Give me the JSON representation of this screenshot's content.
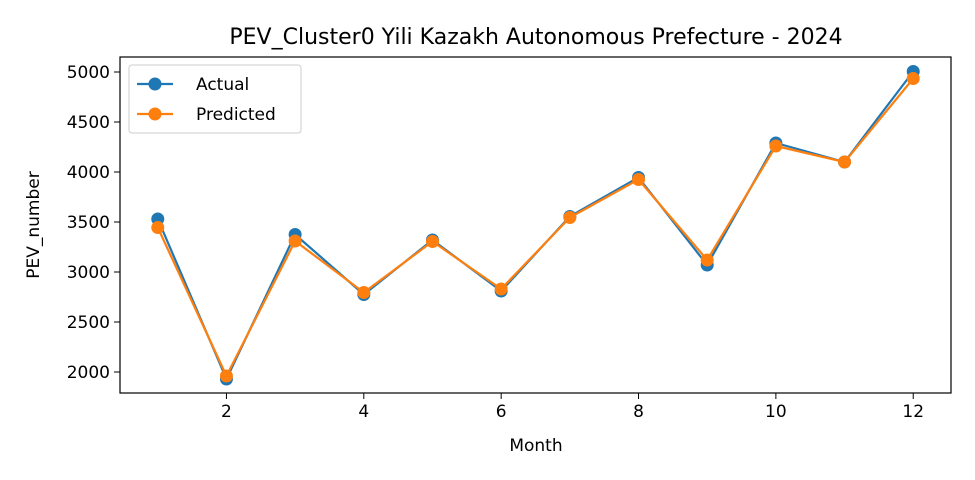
{
  "chart_data": {
    "type": "line",
    "title": "PEV_Cluster0 Yili Kazakh Autonomous Prefecture - 2024",
    "xlabel": "Month",
    "ylabel": "PEV_number",
    "xlim": [
      0.45,
      12.55
    ],
    "ylim": [
      1790,
      5150
    ],
    "xticks": [
      2,
      4,
      6,
      8,
      10,
      12
    ],
    "yticks": [
      2000,
      2500,
      3000,
      3500,
      4000,
      4500,
      5000
    ],
    "grid": false,
    "legend_position": "top-left",
    "x": [
      1,
      2,
      3,
      4,
      5,
      6,
      7,
      8,
      9,
      10,
      11,
      12
    ],
    "series": [
      {
        "name": "Actual",
        "color": "#1f77b4",
        "marker": "circle",
        "values": [
          3530,
          1930,
          3375,
          2775,
          3320,
          2810,
          3555,
          3945,
          3070,
          4290,
          4100,
          5005
        ]
      },
      {
        "name": "Predicted",
        "color": "#ff7f0e",
        "marker": "circle",
        "values": [
          3445,
          1960,
          3310,
          2795,
          3305,
          2830,
          3545,
          3925,
          3120,
          4260,
          4100,
          4935
        ]
      }
    ]
  }
}
